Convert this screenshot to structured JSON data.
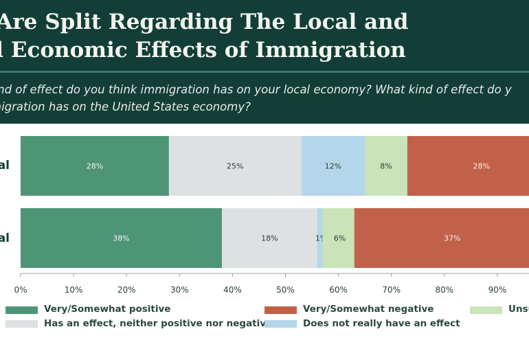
{
  "header": {
    "title_line1": "ers Are Split Regarding The Local and",
    "title_line2": "onal Economic Effects of Immigration",
    "question_line1": "kind of effect do you think immigration has on your local economy? What kind of effect do y",
    "question_line2": "migration has on the United States economy?"
  },
  "colors": {
    "header_bg": "#123e37",
    "positive": "#4e9577",
    "neither": "#dde1e2",
    "no_effect": "#b5d6ea",
    "unsure": "#c8e4b8",
    "negative": "#c2614a"
  },
  "chart_data": {
    "type": "bar",
    "orientation": "horizontal-stacked",
    "categories": [
      "al",
      "al"
    ],
    "series": [
      {
        "name": "Very/Somewhat positive",
        "color": "#4e9577",
        "values": [
          28,
          38
        ],
        "labels": [
          "28%",
          "38%"
        ]
      },
      {
        "name": "Has an effect, neither positive nor negative",
        "color": "#dde1e2",
        "values": [
          25,
          18
        ],
        "labels": [
          "25%",
          "18%"
        ]
      },
      {
        "name": "Does not really have an effect",
        "color": "#b5d6ea",
        "values": [
          12,
          1
        ],
        "labels": [
          "12%",
          "1%"
        ]
      },
      {
        "name": "Unsu",
        "color": "#c8e4b8",
        "values": [
          8,
          6
        ],
        "labels": [
          "8%",
          "6%"
        ]
      },
      {
        "name": "Very/Somewhat negative",
        "color": "#c2614a",
        "values": [
          28,
          37
        ],
        "labels": [
          "28%",
          "37%"
        ]
      }
    ],
    "xlim": [
      0,
      100
    ],
    "xticks": [
      "0%",
      "10%",
      "20%",
      "30%",
      "40%",
      "50%",
      "60%",
      "70%",
      "80%",
      "90%"
    ],
    "xtick_values": [
      0,
      10,
      20,
      30,
      40,
      50,
      60,
      70,
      80,
      90
    ],
    "legend": [
      {
        "label": "Very/Somewhat positive",
        "color": "#4e9577"
      },
      {
        "label": "Very/Somewhat negative",
        "color": "#c2614a"
      },
      {
        "label": "Unsu",
        "color": "#c8e4b8"
      },
      {
        "label": "Has an effect, neither positive nor negative",
        "color": "#dde1e2"
      },
      {
        "label": "Does not really have an effect",
        "color": "#b5d6ea"
      }
    ]
  }
}
